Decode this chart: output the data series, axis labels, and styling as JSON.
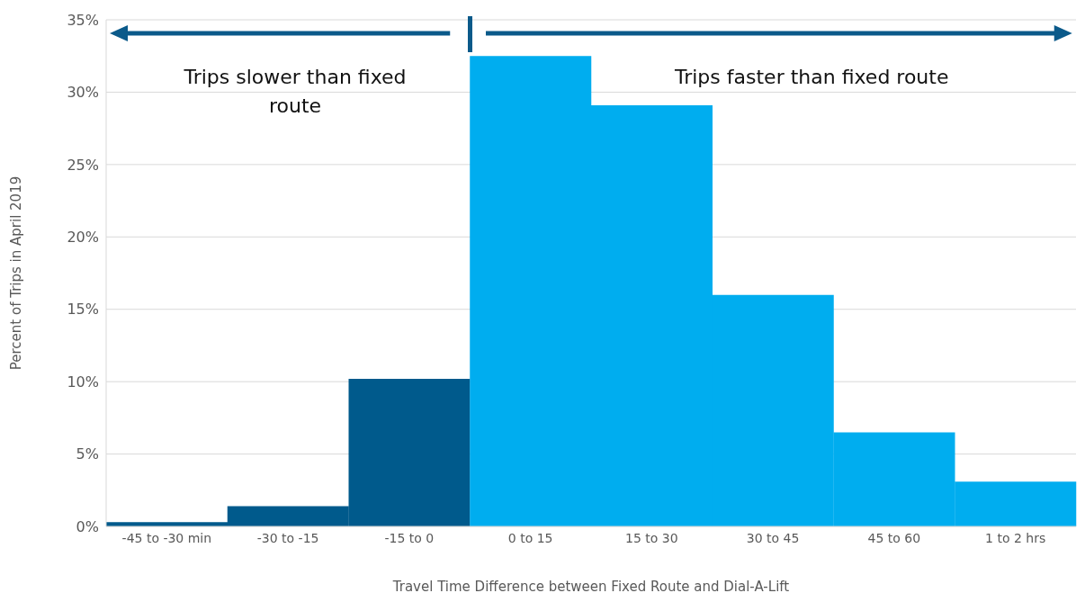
{
  "chart_data": {
    "type": "bar",
    "xlabel": "Travel Time Difference between Fixed Route and Dial-A-Lift",
    "ylabel": "Percent of Trips in April 2019",
    "categories": [
      "-45 to -30 min",
      "-30 to -15",
      "-15 to 0",
      "0 to 15",
      "15 to 30",
      "30 to 45",
      "45 to 60",
      "1 to 2 hrs"
    ],
    "values": [
      0.3,
      1.4,
      10.2,
      32.5,
      29.1,
      16.0,
      6.5,
      3.1
    ],
    "colors": [
      "#005a8c",
      "#005a8c",
      "#005a8c",
      "#00adef",
      "#00adef",
      "#00adef",
      "#00adef",
      "#00adef"
    ],
    "ylim": [
      0,
      35
    ],
    "yticks": [
      {
        "value": 0,
        "label": "0%"
      },
      {
        "value": 5,
        "label": "5%"
      },
      {
        "value": 10,
        "label": "10%"
      },
      {
        "value": 15,
        "label": "15%"
      },
      {
        "value": 20,
        "label": "20%"
      },
      {
        "value": 25,
        "label": "25%"
      },
      {
        "value": 30,
        "label": "30%"
      },
      {
        "value": 35,
        "label": "35%"
      }
    ],
    "grid": "y",
    "annotations": [
      "Trips slower than fixed route",
      "Trips faster than fixed route"
    ]
  }
}
